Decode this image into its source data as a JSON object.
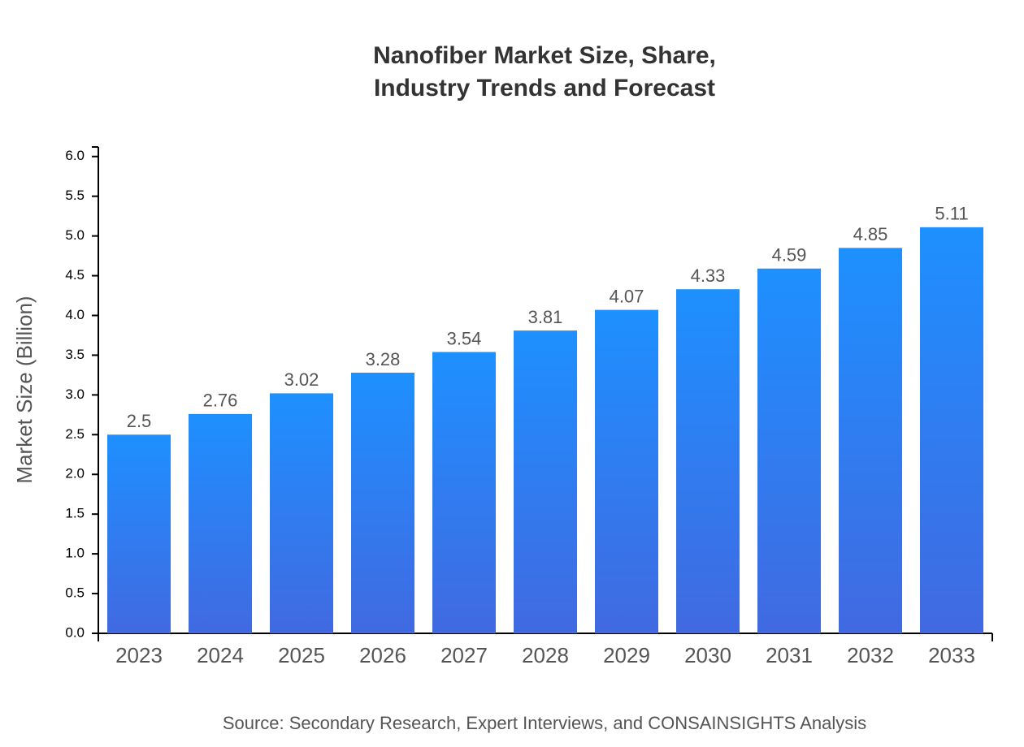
{
  "chart_data": {
    "type": "bar",
    "title": [
      "Nanofiber Market Size, Share,",
      "Industry Trends and Forecast"
    ],
    "y_label": "Market Size (Billion)",
    "source": "Source: Secondary Research, Expert Interviews, and CONSAINSIGHTS Analysis",
    "categories": [
      "2023",
      "2024",
      "2025",
      "2026",
      "2027",
      "2028",
      "2029",
      "2030",
      "2031",
      "2032",
      "2033"
    ],
    "values": [
      2.5,
      2.76,
      3.02,
      3.28,
      3.54,
      3.81,
      4.07,
      4.33,
      4.59,
      4.85,
      5.11
    ],
    "gradient": {
      "top": "#1e90ff",
      "bottom": "#4169e1"
    },
    "ylim": [
      0,
      6.12
    ],
    "yticks": [
      {
        "value": 0,
        "label": "0.0"
      },
      0.5,
      {
        "value": 1,
        "label": "1.0"
      },
      1.5,
      {
        "value": 2,
        "label": "2.0"
      },
      2.5,
      {
        "value": 3,
        "label": "3.0"
      },
      3.5,
      {
        "value": 4,
        "label": "4.0"
      },
      4.5,
      {
        "value": 5,
        "label": "5.0"
      },
      5.5,
      {
        "value": 6,
        "label": "6.0"
      }
    ],
    "grid": false
  }
}
